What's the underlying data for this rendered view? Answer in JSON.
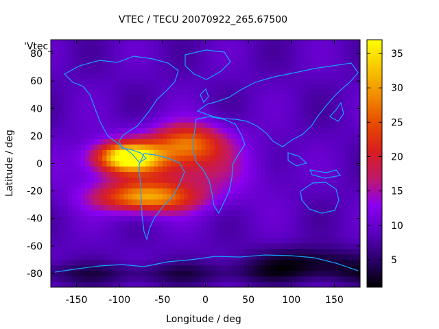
{
  "chart_data": {
    "type": "heatmap",
    "title": "VTEC / TECU 20070922_265.67500",
    "xlabel": "Longitude / deg",
    "ylabel": "Latitude / deg",
    "legend_key": "'Vtec_",
    "xlim": [
      -180,
      180
    ],
    "ylim": [
      -90,
      90
    ],
    "x_ticks": [
      -150,
      -100,
      -50,
      0,
      50,
      100,
      150
    ],
    "y_ticks": [
      80,
      60,
      40,
      20,
      0,
      -20,
      -40,
      -60,
      -80
    ],
    "colorbar": {
      "min": 1,
      "max": 37,
      "ticks": [
        5,
        10,
        15,
        20,
        25,
        30,
        35
      ],
      "colors": [
        "#000000",
        "#2a006a",
        "#5a00c0",
        "#8a00f0",
        "#c0186a",
        "#d81f1f",
        "#e64a00",
        "#f28a00",
        "#f7c400",
        "#ffff00"
      ]
    },
    "features": {
      "equatorial_anomaly_peak": {
        "lon": -90,
        "lat": 5,
        "value": 35
      },
      "southern_crest": {
        "lon": -70,
        "lat": -25,
        "value": 28
      },
      "secondary_crest": {
        "lon": -20,
        "lat": 15,
        "value": 26
      },
      "polar_minimum": {
        "lon": 120,
        "lat": -70,
        "value": 1
      }
    }
  }
}
